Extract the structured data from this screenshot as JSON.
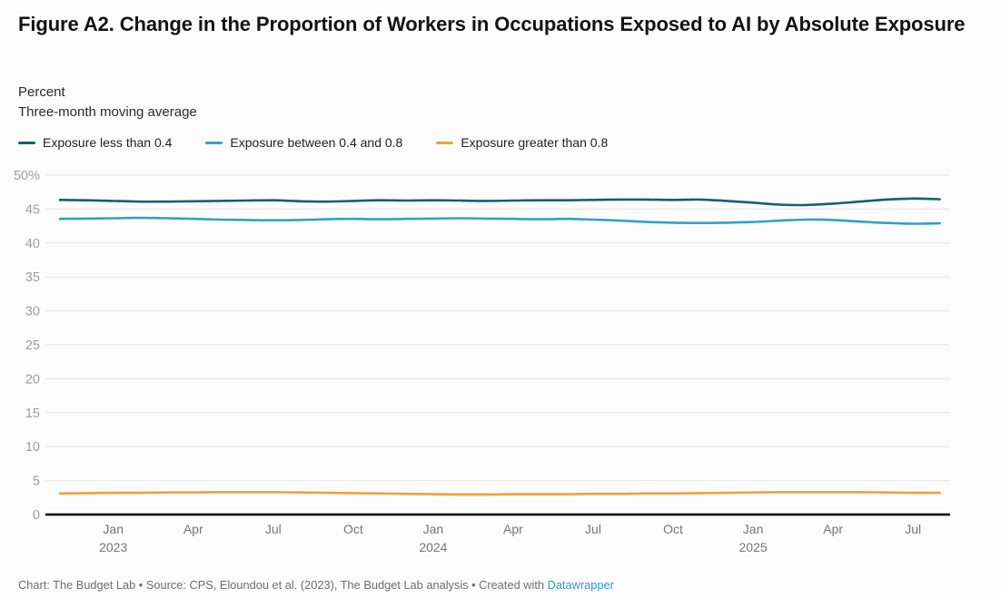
{
  "header": {
    "title": "Figure A2. Change in the Proportion of Workers in Occupations Exposed to AI by Absolute Exposure",
    "subtitle_line1": "Percent",
    "subtitle_line2": "Three-month moving average"
  },
  "footer": {
    "text": "Chart: The Budget Lab • Source: CPS, Eloundou et al. (2023), The Budget Lab analysis • Created with ",
    "link_label": "Datawrapper",
    "link_color": "#2b9cd4"
  },
  "colors": {
    "grid": "#e4e4e4",
    "axis_baseline": "#101010",
    "y_tick_label": "#9e9e9e",
    "x_tick_label": "#767676",
    "background": "#fcfcfc"
  },
  "chart_data": {
    "type": "line",
    "title": "Figure A2. Change in the Proportion of Workers in Occupations Exposed to AI by Absolute Exposure",
    "ylabel": "Percent",
    "subtitle": "Three-month moving average",
    "ylim": [
      0,
      50
    ],
    "ytick_step": 5,
    "ytick_top_label": "50%",
    "grid": true,
    "legend_position": "top",
    "x": [
      "Nov 2022",
      "Dec 2022",
      "Jan 2023",
      "Feb 2023",
      "Mar 2023",
      "Apr 2023",
      "May 2023",
      "Jun 2023",
      "Jul 2023",
      "Aug 2023",
      "Sep 2023",
      "Oct 2023",
      "Nov 2023",
      "Dec 2023",
      "Jan 2024",
      "Feb 2024",
      "Mar 2024",
      "Apr 2024",
      "May 2024",
      "Jun 2024",
      "Jul 2024",
      "Aug 2024",
      "Sep 2024",
      "Oct 2024",
      "Nov 2024",
      "Dec 2024",
      "Jan 2025",
      "Feb 2025",
      "Mar 2025",
      "Apr 2025",
      "May 2025",
      "Jun 2025",
      "Jul 2025",
      "Aug 2025"
    ],
    "xticks": [
      {
        "index": 2,
        "month": "Jan",
        "year": "2023"
      },
      {
        "index": 5,
        "month": "Apr",
        "year": ""
      },
      {
        "index": 8,
        "month": "Jul",
        "year": ""
      },
      {
        "index": 11,
        "month": "Oct",
        "year": ""
      },
      {
        "index": 14,
        "month": "Jan",
        "year": "2024"
      },
      {
        "index": 17,
        "month": "Apr",
        "year": ""
      },
      {
        "index": 20,
        "month": "Jul",
        "year": ""
      },
      {
        "index": 23,
        "month": "Oct",
        "year": ""
      },
      {
        "index": 26,
        "month": "Jan",
        "year": "2025"
      },
      {
        "index": 29,
        "month": "Apr",
        "year": ""
      },
      {
        "index": 32,
        "month": "Jul",
        "year": ""
      }
    ],
    "series": [
      {
        "name": "Exposure less than 0.4",
        "color": "#175f73",
        "values": [
          46.35,
          46.3,
          46.2,
          46.1,
          46.1,
          46.15,
          46.2,
          46.25,
          46.3,
          46.15,
          46.1,
          46.2,
          46.3,
          46.25,
          46.3,
          46.25,
          46.2,
          46.25,
          46.3,
          46.3,
          46.35,
          46.4,
          46.4,
          46.35,
          46.4,
          46.2,
          45.95,
          45.65,
          45.6,
          45.8,
          46.1,
          46.4,
          46.55,
          46.45
        ]
      },
      {
        "name": "Exposure between 0.4 and 0.8",
        "color": "#31a2c7",
        "values": [
          43.55,
          43.6,
          43.65,
          43.7,
          43.65,
          43.55,
          43.45,
          43.4,
          43.35,
          43.4,
          43.5,
          43.55,
          43.5,
          43.55,
          43.6,
          43.65,
          43.6,
          43.55,
          43.5,
          43.55,
          43.45,
          43.3,
          43.1,
          43.0,
          42.95,
          43.0,
          43.1,
          43.3,
          43.45,
          43.4,
          43.15,
          42.95,
          42.85,
          42.9
        ]
      },
      {
        "name": "Exposure greater than 0.8",
        "color": "#f0a03c",
        "values": [
          3.1,
          3.15,
          3.2,
          3.2,
          3.25,
          3.25,
          3.3,
          3.3,
          3.3,
          3.25,
          3.2,
          3.15,
          3.1,
          3.05,
          3.0,
          2.95,
          2.95,
          3.0,
          3.0,
          3.0,
          3.05,
          3.05,
          3.1,
          3.1,
          3.15,
          3.2,
          3.25,
          3.3,
          3.3,
          3.3,
          3.3,
          3.25,
          3.2,
          3.2
        ]
      }
    ]
  }
}
